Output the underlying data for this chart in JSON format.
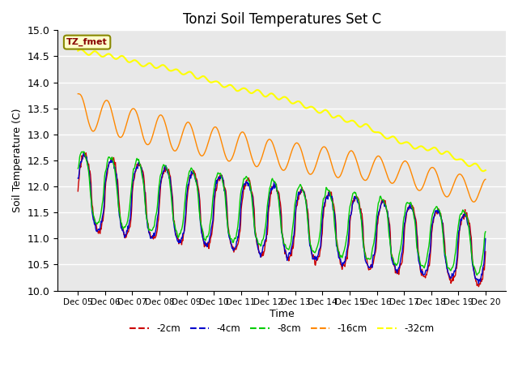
{
  "title": "Tonzi Soil Temperatures Set C",
  "xlabel": "Time",
  "ylabel": "Soil Temperature (C)",
  "ylim": [
    10.0,
    15.0
  ],
  "yticks": [
    10.0,
    10.5,
    11.0,
    11.5,
    12.0,
    12.5,
    13.0,
    13.5,
    14.0,
    14.5,
    15.0
  ],
  "series_colors": {
    "-2cm": "#cc0000",
    "-4cm": "#0000cc",
    "-8cm": "#00cc00",
    "-16cm": "#ff8800",
    "-32cm": "#ffff00"
  },
  "annotation_text": "TZ_fmet",
  "annotation_color": "#880000",
  "annotation_bg": "#ffffcc",
  "annotation_edge": "#888800",
  "background_color": "#e8e8e8",
  "grid_color": "#ffffff",
  "n_points": 720,
  "title_fontsize": 12
}
